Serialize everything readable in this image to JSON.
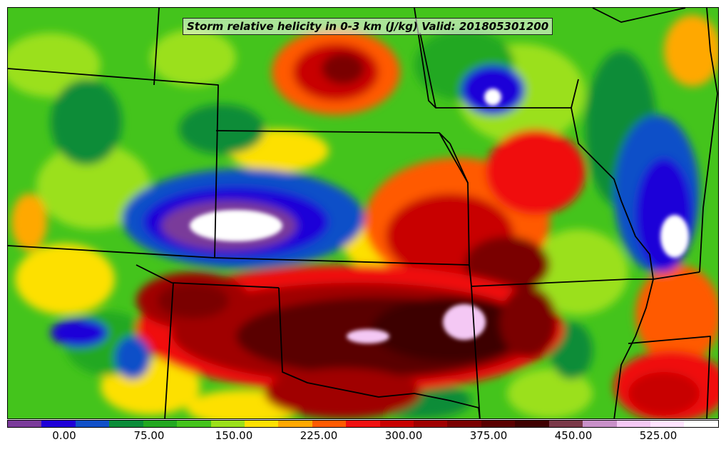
{
  "map": {
    "title": "Storm relative helicity in 0-3 km (J/kg) Valid: 201805301200",
    "base_color": "#44c41c",
    "boundary_color": "#000000"
  },
  "colorbar": {
    "colors": [
      "#7a3a9a",
      "#1f00d8",
      "#1050c8",
      "#0a8c38",
      "#22a820",
      "#44c41c",
      "#9be01a",
      "#fde000",
      "#ffa800",
      "#ff5a00",
      "#f01010",
      "#c80000",
      "#a00000",
      "#7a0000",
      "#5a0000",
      "#3e0000",
      "#7a3848",
      "#c890c8",
      "#f4c8f4",
      "#ffe4ff",
      "#ffffff"
    ],
    "labels": [
      "0.00",
      "75.00",
      "150.00",
      "225.00",
      "300.00",
      "375.00",
      "450.00",
      "525.00"
    ]
  }
}
